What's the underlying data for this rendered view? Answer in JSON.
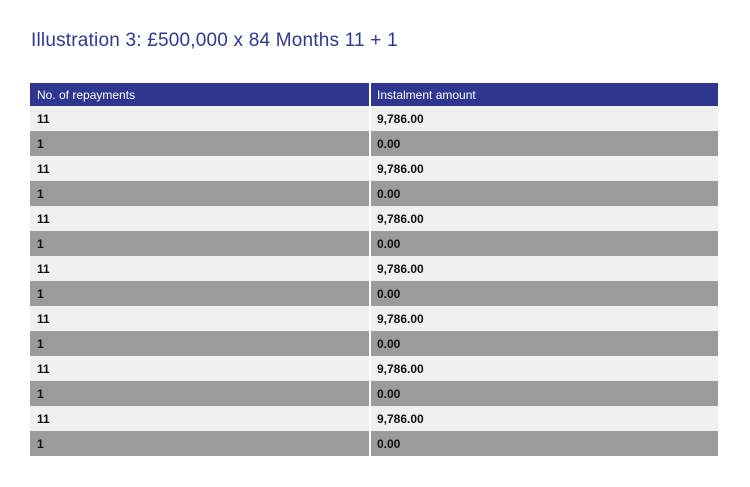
{
  "title": "Illustration 3: £500,000 x 84 Months 11 + 1",
  "colors": {
    "page_bg": "#ffffff",
    "title_color": "#2d3a8f",
    "header_bg": "#2e3690",
    "header_text": "#ffffff",
    "row_light_bg": "#f0f0f0",
    "row_dark_bg": "#9b9b9b",
    "cell_text": "#111111",
    "column_divider": "#ffffff"
  },
  "table": {
    "columns": [
      {
        "label": "No. of repayments"
      },
      {
        "label": "Instalment amount"
      }
    ],
    "rows": [
      {
        "repayments": "11",
        "instalment": "9,786.00",
        "shade": "light"
      },
      {
        "repayments": "1",
        "instalment": "0.00",
        "shade": "dark"
      },
      {
        "repayments": "11",
        "instalment": "9,786.00",
        "shade": "light"
      },
      {
        "repayments": "1",
        "instalment": "0.00",
        "shade": "dark"
      },
      {
        "repayments": "11",
        "instalment": "9,786.00",
        "shade": "light"
      },
      {
        "repayments": "1",
        "instalment": "0.00",
        "shade": "dark"
      },
      {
        "repayments": "11",
        "instalment": "9,786.00",
        "shade": "light"
      },
      {
        "repayments": "1",
        "instalment": "0.00",
        "shade": "dark"
      },
      {
        "repayments": "11",
        "instalment": "9,786.00",
        "shade": "light"
      },
      {
        "repayments": "1",
        "instalment": "0.00",
        "shade": "dark"
      },
      {
        "repayments": "11",
        "instalment": "9,786.00",
        "shade": "light"
      },
      {
        "repayments": "1",
        "instalment": "0.00",
        "shade": "dark"
      },
      {
        "repayments": "11",
        "instalment": "9,786.00",
        "shade": "light"
      },
      {
        "repayments": "1",
        "instalment": "0.00",
        "shade": "dark"
      }
    ]
  }
}
